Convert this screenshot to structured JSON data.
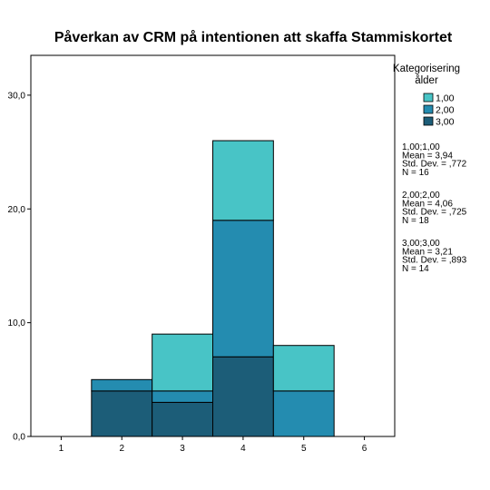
{
  "chart_data": {
    "type": "bar",
    "title": "Påverkan av CRM på intentionen att skaffa Stammiskortet",
    "xlabel": "",
    "ylabel": "",
    "x_ticks": [
      "1",
      "2",
      "3",
      "4",
      "5",
      "6"
    ],
    "y_ticks": [
      "0,0",
      "10,0",
      "20,0",
      "30,0"
    ],
    "ylim": [
      0,
      33.5
    ],
    "xlim": [
      0.5,
      6.5
    ],
    "bins": [
      2,
      3,
      4,
      5
    ],
    "stacked": true,
    "series": [
      {
        "name": "3,00",
        "color": "#1c5d78",
        "values": [
          4,
          3,
          7,
          0
        ]
      },
      {
        "name": "2,00",
        "color": "#248cb0",
        "values": [
          1,
          1,
          12,
          4
        ]
      },
      {
        "name": "1,00",
        "color": "#48c4c6",
        "values": [
          0,
          5,
          7,
          4
        ]
      }
    ],
    "legend": {
      "title_line1": "Kategorisering",
      "title_line2": "ålder",
      "position": "right",
      "items": [
        {
          "label": "1,00",
          "color": "#48c4c6"
        },
        {
          "label": "2,00",
          "color": "#248cb0"
        },
        {
          "label": "3,00",
          "color": "#1c5d78"
        }
      ]
    },
    "stats": [
      {
        "group": "1,00;1,00",
        "mean": "Mean = 3,94",
        "sd": "Std. Dev. = ,772",
        "n": "N = 16"
      },
      {
        "group": "2,00;2,00",
        "mean": "Mean = 4,06",
        "sd": "Std. Dev. = ,725",
        "n": "N = 18"
      },
      {
        "group": "3,00;3,00",
        "mean": "Mean = 3,21",
        "sd": "Std. Dev. = ,893",
        "n": "N = 14"
      }
    ]
  }
}
